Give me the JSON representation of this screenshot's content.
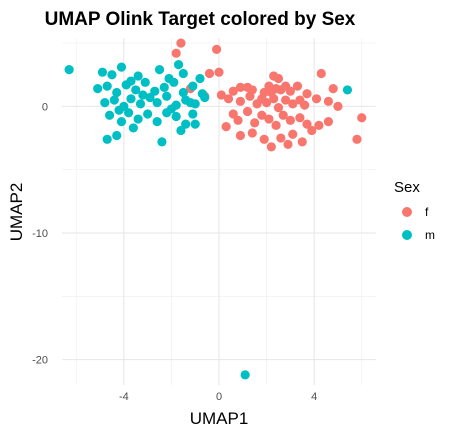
{
  "chart_data": {
    "type": "scatter",
    "title": "UMAP Olink Target colored by Sex",
    "xlabel": "UMAP1",
    "ylabel": "UMAP2",
    "xlim": [
      -6.6,
      6.6
    ],
    "ylim": [
      -22.0,
      5.4
    ],
    "xticks": [
      -4,
      0,
      4
    ],
    "yticks": [
      -20,
      -10,
      0
    ],
    "grid": true,
    "legend": {
      "title": "Sex",
      "placement": "right",
      "entries": [
        {
          "label": "f",
          "color": "#F8766D"
        },
        {
          "label": "m",
          "color": "#00BFC4"
        }
      ]
    },
    "series": [
      {
        "name": "f",
        "color": "#F8766D",
        "points": [
          [
            -1.6,
            5.0
          ],
          [
            -1.8,
            4.2
          ],
          [
            -0.1,
            4.5
          ],
          [
            0.0,
            2.7
          ],
          [
            -0.4,
            2.6
          ],
          [
            0.6,
            1.2
          ],
          [
            0.9,
            1.5
          ],
          [
            1.2,
            1.5
          ],
          [
            1.4,
            1.3
          ],
          [
            1.9,
            1.1
          ],
          [
            2.1,
            1.6
          ],
          [
            2.2,
            1.1
          ],
          [
            2.4,
            1.4
          ],
          [
            2.6,
            1.3
          ],
          [
            2.8,
            1.6
          ],
          [
            3.0,
            1.2
          ],
          [
            3.3,
            1.6
          ],
          [
            3.7,
            1.0
          ],
          [
            2.3,
            2.4
          ],
          [
            2.5,
            2.2
          ],
          [
            4.3,
            2.6
          ],
          [
            4.8,
            1.4
          ],
          [
            0.1,
            0.9
          ],
          [
            0.4,
            0.6
          ],
          [
            0.9,
            0.4
          ],
          [
            1.3,
            0.8
          ],
          [
            1.6,
            0.2
          ],
          [
            1.8,
            0.6
          ],
          [
            2.0,
            0.3
          ],
          [
            2.3,
            0.6
          ],
          [
            2.5,
            -0.1
          ],
          [
            2.8,
            0.5
          ],
          [
            3.1,
            0.2
          ],
          [
            3.4,
            0.5
          ],
          [
            3.6,
            0.1
          ],
          [
            4.1,
            0.6
          ],
          [
            4.6,
            0.4
          ],
          [
            5.0,
            0.0
          ],
          [
            6.0,
            -0.9
          ],
          [
            0.6,
            -0.6
          ],
          [
            0.8,
            -1.1
          ],
          [
            1.2,
            -0.4
          ],
          [
            1.5,
            -1.3
          ],
          [
            1.8,
            -0.7
          ],
          [
            2.1,
            -1.0
          ],
          [
            2.4,
            -1.5
          ],
          [
            2.7,
            -0.7
          ],
          [
            3.0,
            -1.1
          ],
          [
            3.4,
            -0.9
          ],
          [
            3.7,
            -1.4
          ],
          [
            4.2,
            -1.5
          ],
          [
            4.6,
            -1.2
          ],
          [
            0.9,
            -2.3
          ],
          [
            1.4,
            -2.1
          ],
          [
            1.9,
            -2.6
          ],
          [
            2.2,
            -3.2
          ],
          [
            2.6,
            -2.5
          ],
          [
            3.1,
            -2.2
          ],
          [
            3.5,
            -2.8
          ],
          [
            5.8,
            -2.6
          ],
          [
            -1.2,
            1.4
          ],
          [
            -0.6,
            0.8
          ],
          [
            0.3,
            -1.6
          ],
          [
            2.9,
            -3.0
          ],
          [
            3.9,
            -1.9
          ]
        ]
      },
      {
        "name": "m",
        "color": "#00BFC4",
        "points": [
          [
            -6.3,
            2.9
          ],
          [
            -4.9,
            2.7
          ],
          [
            -4.5,
            2.5
          ],
          [
            -4.1,
            3.1
          ],
          [
            -3.7,
            2.0
          ],
          [
            -3.4,
            2.4
          ],
          [
            -2.5,
            2.9
          ],
          [
            -2.1,
            2.2
          ],
          [
            -1.7,
            3.3
          ],
          [
            -1.5,
            2.6
          ],
          [
            -0.8,
            2.2
          ],
          [
            -5.1,
            1.4
          ],
          [
            -4.7,
            1.6
          ],
          [
            -4.3,
            1.1
          ],
          [
            -3.9,
            1.7
          ],
          [
            -3.5,
            1.3
          ],
          [
            -3.1,
            1.9
          ],
          [
            -2.7,
            1.2
          ],
          [
            -2.3,
            1.5
          ],
          [
            -1.9,
            1.9
          ],
          [
            -1.5,
            1.1
          ],
          [
            -1.1,
            1.6
          ],
          [
            -0.7,
            1.0
          ],
          [
            -4.8,
            0.3
          ],
          [
            -4.4,
            0.5
          ],
          [
            -4.0,
            0.0
          ],
          [
            -3.7,
            0.6
          ],
          [
            -3.3,
            0.2
          ],
          [
            -2.9,
            0.7
          ],
          [
            -2.6,
            0.3
          ],
          [
            -2.2,
            0.8
          ],
          [
            -1.8,
            0.1
          ],
          [
            -1.4,
            0.5
          ],
          [
            -1.0,
            0.2
          ],
          [
            -0.6,
            0.7
          ],
          [
            -4.6,
            -0.7
          ],
          [
            -4.1,
            -1.2
          ],
          [
            -3.8,
            -0.5
          ],
          [
            -3.4,
            -1.0
          ],
          [
            -3.0,
            -0.6
          ],
          [
            -2.6,
            -1.2
          ],
          [
            -2.2,
            -0.5
          ],
          [
            -1.8,
            -0.8
          ],
          [
            -1.4,
            -1.4
          ],
          [
            -1.1,
            -0.6
          ],
          [
            -4.7,
            -2.6
          ],
          [
            -4.3,
            -2.3
          ],
          [
            -3.6,
            -1.7
          ],
          [
            -2.4,
            -2.8
          ],
          [
            -1.6,
            -1.9
          ],
          [
            -1.0,
            -1.4
          ],
          [
            -4.2,
            -0.3
          ],
          [
            -3.2,
            0.9
          ],
          [
            -2.0,
            -0.2
          ],
          [
            -1.2,
            0.3
          ],
          [
            5.4,
            1.3
          ],
          [
            1.1,
            -21.2
          ]
        ]
      }
    ]
  }
}
